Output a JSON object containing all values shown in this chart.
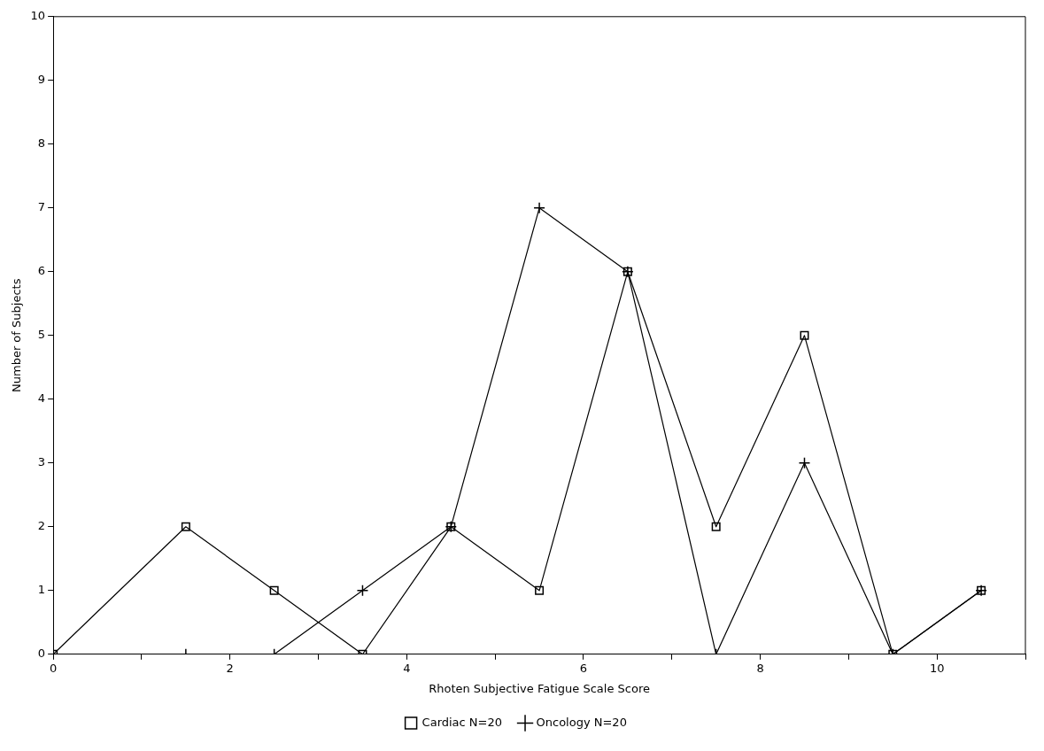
{
  "chart_data": {
    "type": "line",
    "xlabel": "Rhoten Subjective Fatigue Scale Score",
    "ylabel": "Number of Subjects",
    "x": [
      0,
      1.5,
      2.5,
      3.5,
      4.5,
      5.5,
      6.5,
      7.5,
      8.5,
      9.5,
      10.5
    ],
    "series": [
      {
        "name": "Cardiac N=20",
        "color": "#000000",
        "marker": "square",
        "values": [
          0,
          2,
          1,
          0,
          2,
          1,
          6,
          2,
          5,
          0,
          1
        ]
      },
      {
        "name": "Oncology N=20",
        "color": "#000000",
        "marker": "cross",
        "values": [
          0,
          0,
          0,
          1,
          2,
          7,
          6,
          0,
          3,
          0,
          1
        ]
      }
    ],
    "xlim": [
      0,
      11
    ],
    "xticks": [
      0,
      {
        "value": 1,
        "label": null
      },
      2,
      {
        "value": 3,
        "label": null
      },
      4,
      {
        "value": 5,
        "label": null
      },
      6,
      {
        "value": 7,
        "label": null
      },
      8,
      {
        "value": 9,
        "label": null
      },
      10,
      {
        "value": 11,
        "label": null
      }
    ],
    "ylim": [
      0,
      10
    ],
    "yticks": [
      0,
      1,
      2,
      3,
      4,
      5,
      6,
      7,
      8,
      9,
      10
    ],
    "grid": false,
    "legend": "bottom",
    "line_style": "solid"
  }
}
